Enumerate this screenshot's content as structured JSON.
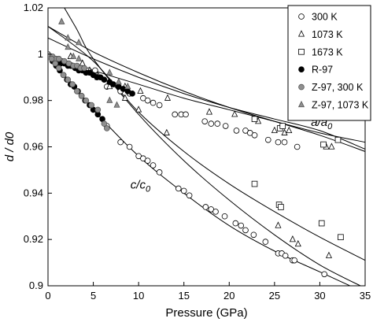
{
  "chart_data": {
    "type": "scatter",
    "xlabel": "Pressure (GPa)",
    "ylabel": "d / d0",
    "xlim": [
      0,
      35
    ],
    "ylim": [
      0.9,
      1.02
    ],
    "x_ticks": [
      0,
      5,
      10,
      15,
      20,
      25,
      30,
      35
    ],
    "y_ticks": [
      0.9,
      0.92,
      0.94,
      0.96,
      0.98,
      1.0,
      1.02
    ],
    "x_tick_labels": [
      "0",
      "5",
      "10",
      "15",
      "20",
      "25",
      "30",
      "35"
    ],
    "y_tick_labels": [
      "0.9",
      "0.92",
      "0.94",
      "0.96",
      "0.98",
      "1",
      "1.02"
    ],
    "grid": false,
    "legend_position": "top-right",
    "annotations": [
      {
        "text": "a/a0",
        "x": 30.2,
        "y": 0.969
      },
      {
        "text": "c/c0",
        "x": 10.2,
        "y": 0.942
      }
    ],
    "series": [
      {
        "name": "300 K",
        "marker": "circle-open",
        "color": "#000000",
        "x": [
          0.5,
          1.5,
          2.5,
          4.5,
          5.2,
          6.5,
          8.0,
          9.0,
          10.5,
          11.0,
          11.6,
          12.3,
          14.0,
          14.7,
          15.2,
          17.3,
          18.0,
          18.7,
          19.6,
          20.8,
          21.8,
          22.3,
          22.8,
          24.3,
          25.4,
          26.1,
          27.5
        ],
        "y": [
          0.998,
          0.997,
          0.995,
          0.993,
          0.993,
          0.986,
          0.984,
          0.983,
          0.981,
          0.98,
          0.979,
          0.978,
          0.974,
          0.974,
          0.974,
          0.971,
          0.97,
          0.97,
          0.969,
          0.967,
          0.967,
          0.966,
          0.965,
          0.963,
          0.962,
          0.962,
          0.96
        ],
        "values_c": {
          "x": [
            6.5,
            8.0,
            9.0,
            10.0,
            10.5,
            11.0,
            11.6,
            12.3,
            14.4,
            15.0,
            15.6,
            17.4,
            18.0,
            18.5,
            19.5,
            20.7,
            21.3,
            21.8,
            22.7,
            24.0,
            25.4,
            25.8,
            26.2,
            27.0,
            27.2,
            30.5
          ],
          "y": [
            0.969,
            0.962,
            0.96,
            0.956,
            0.955,
            0.954,
            0.952,
            0.949,
            0.942,
            0.941,
            0.939,
            0.934,
            0.933,
            0.932,
            0.93,
            0.927,
            0.926,
            0.924,
            0.922,
            0.919,
            0.914,
            0.914,
            0.913,
            0.911,
            0.911,
            0.905
          ]
        }
      },
      {
        "name": "1073 K",
        "marker": "triangle-open",
        "color": "#000000",
        "x": [
          2.5,
          3.8,
          4.6,
          5.5,
          6.8,
          8.5,
          10.2,
          13.2,
          17.8,
          20.6,
          23.2,
          25.0,
          26.1,
          26.6,
          30.7,
          31.3
        ],
        "y": [
          0.999,
          0.996,
          0.993,
          0.991,
          0.988,
          0.986,
          0.984,
          0.981,
          0.975,
          0.974,
          0.971,
          0.967,
          0.966,
          0.967,
          0.96,
          0.96
        ],
        "values_c": {
          "x": [
            2.5,
            3.8,
            5.5,
            6.8,
            8.5,
            10.0,
            13.1,
            25.4,
            27.0,
            27.6,
            31.0
          ],
          "y": [
            0.999,
            0.996,
            0.99,
            0.986,
            0.981,
            0.976,
            0.966,
            0.926,
            0.92,
            0.918,
            0.913
          ]
        }
      },
      {
        "name": "1673 K",
        "marker": "square-open",
        "color": "#000000",
        "x": [
          22.8,
          25.6,
          25.9,
          30.4,
          32.0
        ],
        "y": [
          0.972,
          0.968,
          0.969,
          0.961,
          0.963
        ],
        "values_c": {
          "x": [
            22.8,
            25.5,
            25.7,
            30.2,
            32.3
          ],
          "y": [
            0.944,
            0.935,
            0.934,
            0.927,
            0.921
          ]
        }
      },
      {
        "name": "R-97",
        "marker": "circle-filled",
        "color": "#000000",
        "x": [
          0.6,
          1.0,
          1.4,
          1.8,
          2.2,
          2.6,
          3.0,
          3.4,
          3.8,
          4.2,
          4.6,
          5.0,
          5.4,
          5.8,
          6.2,
          6.8,
          7.2,
          7.8,
          8.3,
          8.8,
          9.3
        ],
        "y": [
          0.998,
          0.997,
          0.996,
          0.996,
          0.995,
          0.995,
          0.994,
          0.993,
          0.993,
          0.992,
          0.992,
          0.991,
          0.99,
          0.99,
          0.989,
          0.988,
          0.987,
          0.986,
          0.985,
          0.984,
          0.983
        ],
        "values_c": {
          "x": [
            0.5,
            0.9,
            1.3,
            1.7,
            2.1,
            2.5,
            2.9,
            3.3,
            3.7,
            4.1,
            4.6,
            5.0,
            5.5,
            6.0
          ],
          "y": [
            0.997,
            0.995,
            0.993,
            0.991,
            0.989,
            0.987,
            0.986,
            0.984,
            0.982,
            0.98,
            0.978,
            0.976,
            0.974,
            0.972
          ]
        }
      },
      {
        "name": "Z-97, 300 K",
        "marker": "circle-gray",
        "color": "#909090",
        "x": [
          0.0,
          0.5,
          0.9,
          1.2,
          1.8,
          2.3,
          2.8,
          3.2,
          3.6,
          4.0
        ],
        "y": [
          1.0,
          0.999,
          0.998,
          0.998,
          0.997,
          0.996,
          0.995,
          0.995,
          0.994,
          0.994
        ],
        "values_c": {
          "x": [
            0.0,
            0.4,
            0.8,
            1.2,
            1.7,
            2.2,
            2.7,
            3.2,
            3.7,
            4.2,
            4.8,
            5.5,
            6.2,
            6.5
          ],
          "y": [
            1.0,
            0.998,
            0.996,
            0.994,
            0.991,
            0.989,
            0.987,
            0.984,
            0.982,
            0.98,
            0.978,
            0.976,
            0.97,
            0.968
          ]
        }
      },
      {
        "name": "Z-97, 1073 K",
        "marker": "triangle-gray",
        "color": "#909090",
        "x": [
          1.5,
          2.2,
          2.8,
          3.4,
          6.8,
          7.8,
          8.8
        ],
        "y": [
          1.014,
          1.003,
          0.999,
          0.998,
          0.992,
          0.988,
          0.986
        ],
        "values_c": {
          "x": [
            1.5,
            2.2,
            3.4,
            6.8,
            7.6
          ],
          "y": [
            1.014,
            1.007,
            1.005,
            0.98,
            0.978
          ]
        }
      }
    ],
    "fit_curves": [
      {
        "x": [
          0,
          5,
          10,
          15,
          20,
          25,
          30,
          35
        ],
        "y": [
          1.0,
          0.993,
          0.987,
          0.981,
          0.976,
          0.971,
          0.966,
          0.962
        ]
      },
      {
        "x": [
          0,
          5,
          10,
          15,
          20,
          25,
          30,
          35
        ],
        "y": [
          1.007,
          0.998,
          0.99,
          0.983,
          0.977,
          0.972,
          0.967,
          0.959
        ]
      },
      {
        "x": [
          0,
          5,
          10,
          15,
          20,
          25,
          30,
          35
        ],
        "y": [
          1.012,
          1.001,
          0.992,
          0.984,
          0.977,
          0.971,
          0.965,
          0.958
        ]
      },
      {
        "x": [
          0,
          2,
          5,
          10,
          15,
          20,
          25,
          30,
          35
        ],
        "y": [
          1.0,
          0.99,
          0.976,
          0.956,
          0.94,
          0.926,
          0.915,
          0.906,
          0.897
        ]
      },
      {
        "x": [
          0,
          5,
          10,
          15,
          20,
          25,
          30,
          35
        ],
        "y": [
          1.012,
          0.997,
          0.975,
          0.958,
          0.944,
          0.932,
          0.921,
          0.911
        ]
      },
      {
        "x": [
          0,
          3,
          5,
          10,
          15,
          20,
          25,
          30,
          35
        ],
        "y": [
          1.032,
          1.012,
          0.998,
          0.974,
          0.954,
          0.937,
          0.922,
          0.909,
          0.899
        ]
      }
    ]
  }
}
